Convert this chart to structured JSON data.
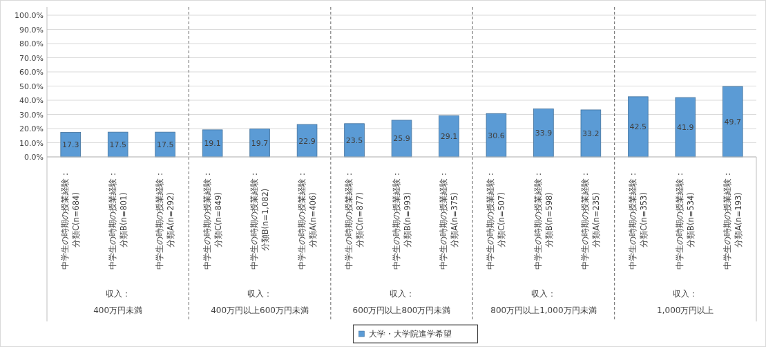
{
  "chart_data": {
    "type": "bar",
    "categories": [
      "中学生の時期の授業経験：分類C(n=684)",
      "中学生の時期の授業経験：分類B(n=801)",
      "中学生の時期の授業経験：分類A(n=292)",
      "中学生の時期の授業経験：分類C(n=849)",
      "中学生の時期の授業経験：分類B(n=1,082)",
      "中学生の時期の授業経験：分類A(n=406)",
      "中学生の時期の授業経験：分類C(n=877)",
      "中学生の時期の授業経験：分類B(n=993)",
      "中学生の時期の授業経験：分類A(n=375)",
      "中学生の時期の授業経験：分類C(n=507)",
      "中学生の時期の授業経験：分類B(n=598)",
      "中学生の時期の授業経験：分類A(n=235)",
      "中学生の時期の授業経験：分類C(n=353)",
      "中学生の時期の授業経験：分類B(n=534)",
      "中学生の時期の授業経験：分類A(n=193)"
    ],
    "series": [
      {
        "name": "大学・大学院進学希望",
        "color": "#5b9bd5",
        "values": [
          17.3,
          17.5,
          17.5,
          19.1,
          19.7,
          22.9,
          23.5,
          25.9,
          29.1,
          30.6,
          33.9,
          33.2,
          42.5,
          41.9,
          49.7
        ]
      }
    ],
    "annotations": [
      "収入：",
      "400万円未満",
      "収入：",
      "400万円以上600万円未満",
      "収入：",
      "600万円以上800万円未満",
      "収入：",
      "800万円以上1,000万円未満",
      "収入：",
      "1,000万円以上"
    ],
    "ylim": [
      0,
      100
    ],
    "yticks": [
      {
        "value": 0,
        "label": "0.0%"
      },
      {
        "value": 10,
        "label": "10.0%"
      },
      {
        "value": 20,
        "label": "20.0%"
      },
      {
        "value": 30,
        "label": "30.0%"
      },
      {
        "value": 40,
        "label": "40.0%"
      },
      {
        "value": 50,
        "label": "50.0%"
      },
      {
        "value": 60,
        "label": "60.0%"
      },
      {
        "value": 70,
        "label": "70.0%"
      },
      {
        "value": 80,
        "label": "80.0%"
      },
      {
        "value": 90,
        "label": "90.0%"
      },
      {
        "value": 100,
        "label": "100.0%"
      }
    ],
    "grid": "y",
    "data_labels": true,
    "legend": "bottom"
  }
}
